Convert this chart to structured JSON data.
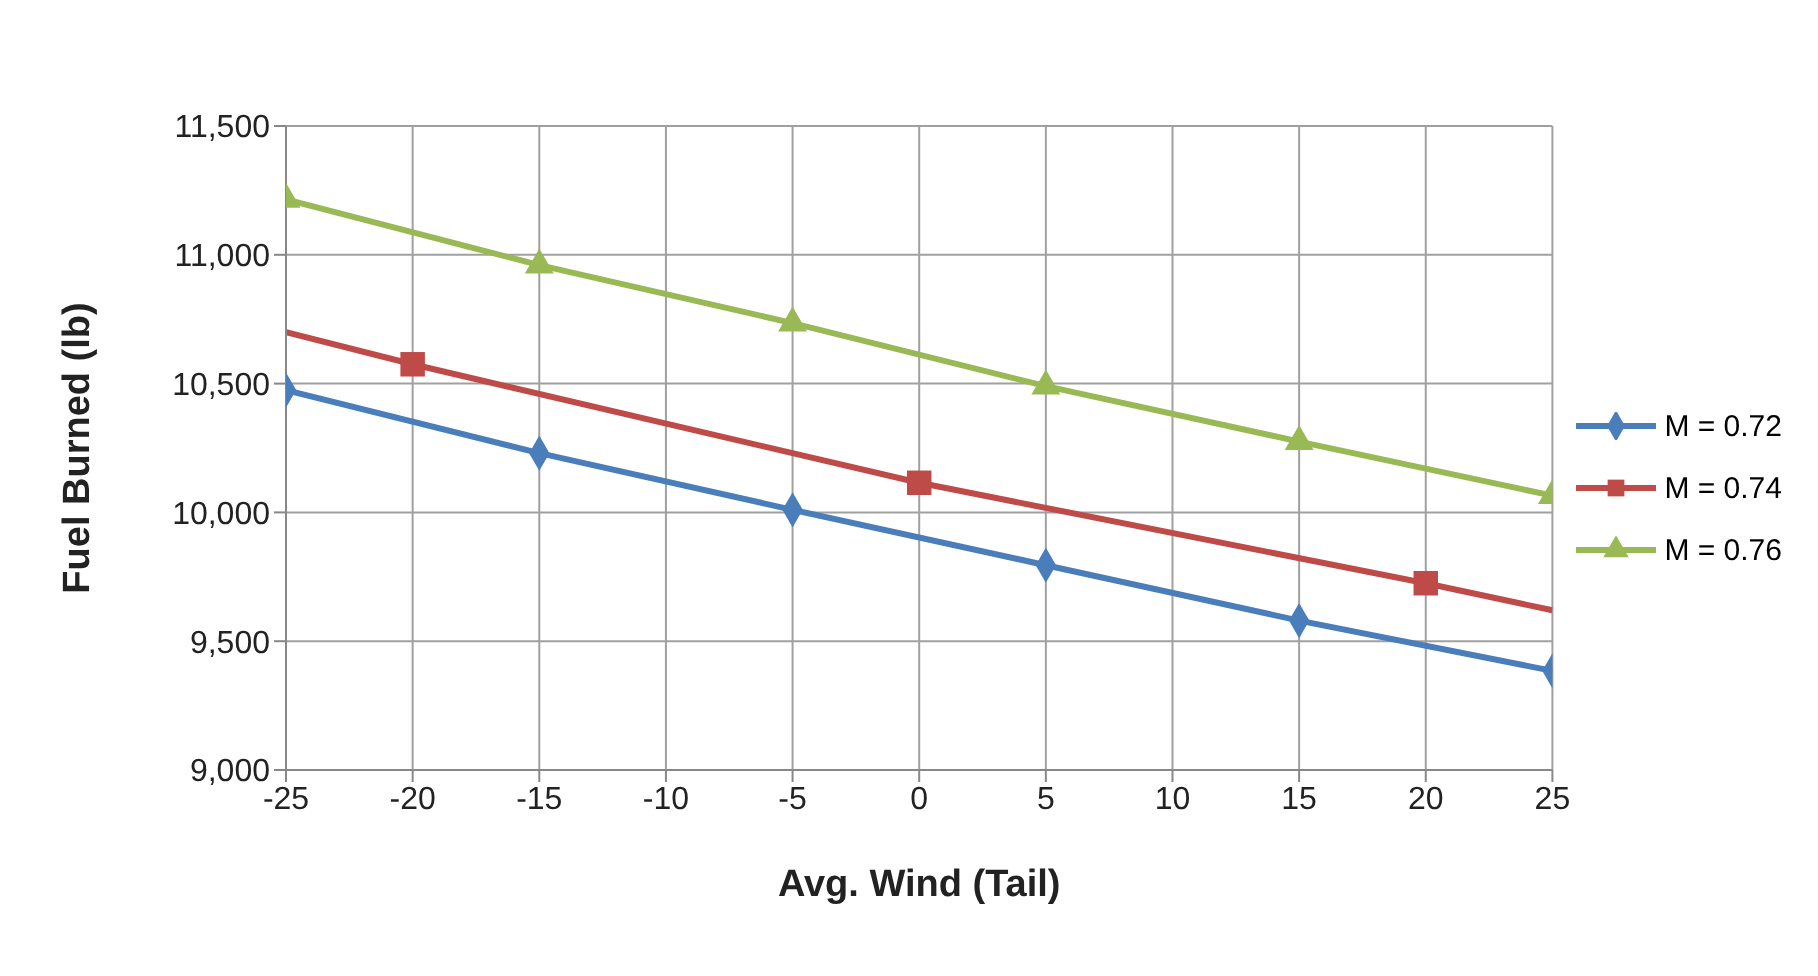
{
  "chart_data": {
    "type": "line",
    "xlabel": "Avg. Wind (Tail)",
    "ylabel": "Fuel Burned (lb)",
    "xlim": [
      -25,
      25
    ],
    "xticks": [
      -25,
      -20,
      -15,
      -10,
      -5,
      0,
      5,
      10,
      15,
      20,
      25
    ],
    "ylim": [
      9000,
      11500
    ],
    "yticks": [
      {
        "value": 9000,
        "label": "9,000"
      },
      {
        "value": 9500,
        "label": "9,500"
      },
      {
        "value": 10000,
        "label": "10,000"
      },
      {
        "value": 10500,
        "label": "10,500"
      },
      {
        "value": 11000,
        "label": "11,000"
      },
      {
        "value": 11500,
        "label": "11,500"
      }
    ],
    "grid": true,
    "legend": "right",
    "series": [
      {
        "name": "M = 0.72",
        "marker": "diamond",
        "color": "#4a7ebb",
        "x": [
          -25,
          -15,
          -5,
          5,
          15,
          25
        ],
        "values": [
          10475,
          10230,
          10010,
          9795,
          9580,
          9385
        ]
      },
      {
        "name": "M = 0.74",
        "type": "scatter",
        "marker": "square",
        "color": "#be4b48",
        "x": [
          -20,
          0,
          20
        ],
        "values": [
          10575,
          10115,
          9725
        ]
      },
      {
        "marker": "none",
        "color": "#be4b48",
        "x": [
          -25,
          -20,
          0,
          20,
          25
        ],
        "values": [
          10700,
          10575,
          10115,
          9725,
          9620
        ]
      },
      {
        "name": "M = 0.76",
        "marker": "triangle",
        "color": "#98b954",
        "x": [
          -25,
          -15,
          -5,
          5,
          15,
          25
        ],
        "values": [
          11215,
          10960,
          10735,
          10490,
          10275,
          10065
        ]
      }
    ]
  }
}
